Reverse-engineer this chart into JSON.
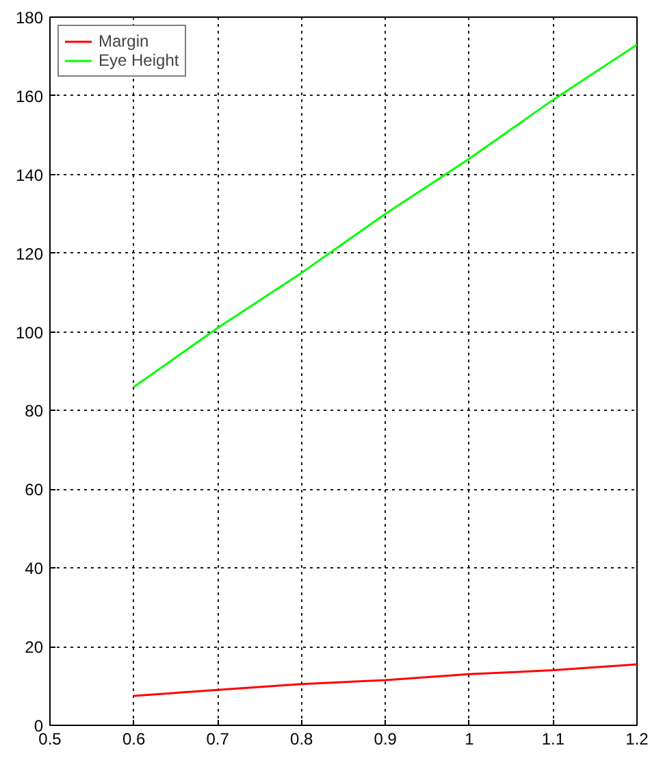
{
  "chart_data": {
    "type": "line",
    "x": [
      0.6,
      0.7,
      0.8,
      0.9,
      1.0,
      1.1,
      1.2
    ],
    "series": [
      {
        "name": "Margin",
        "color": "#ff0000",
        "values": [
          7.5,
          9,
          10.5,
          11.5,
          13,
          14,
          15.5
        ]
      },
      {
        "name": "Eye Height",
        "color": "#00ff00",
        "values": [
          86,
          101,
          115,
          130,
          144,
          159,
          173
        ]
      }
    ],
    "xlim": [
      0.5,
      1.2
    ],
    "ylim": [
      0,
      180
    ],
    "xticks": [
      0.5,
      0.6,
      0.7,
      0.8,
      0.9,
      1,
      1.1,
      1.2
    ],
    "yticks": [
      0,
      20,
      40,
      60,
      80,
      100,
      120,
      140,
      160,
      180
    ],
    "grid": true,
    "legend": "top left",
    "marker": "none",
    "line_style": "solid"
  }
}
